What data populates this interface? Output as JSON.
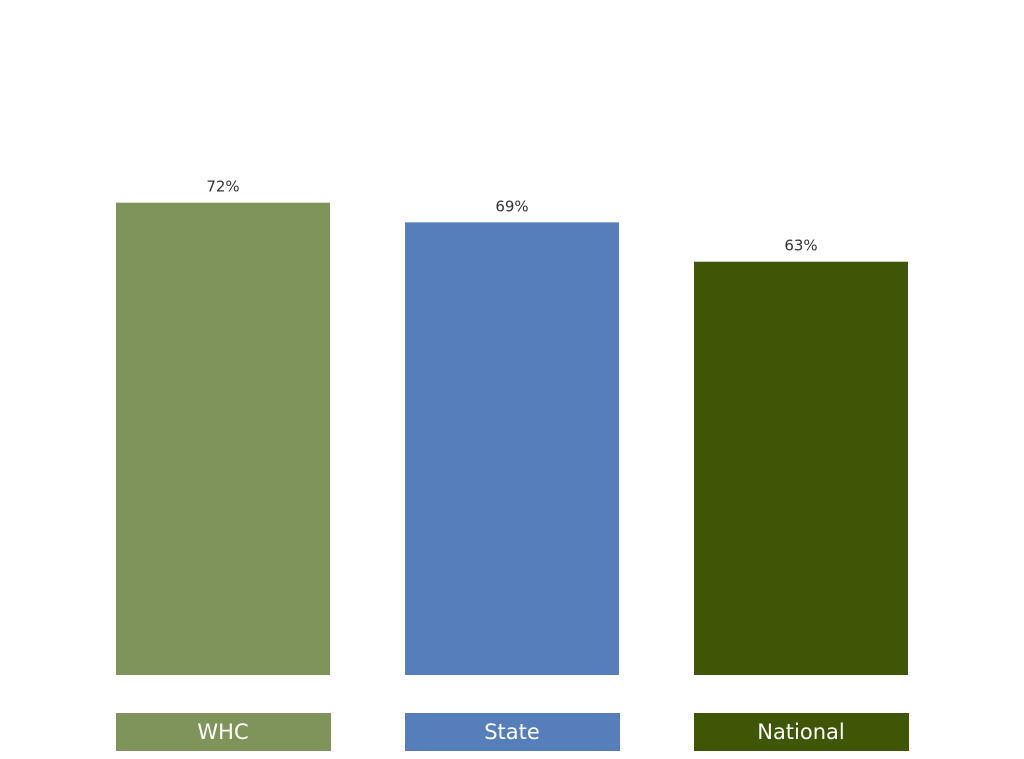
{
  "chart_data": {
    "type": "bar",
    "categories": [
      "WHC",
      "State",
      "National"
    ],
    "values": [
      72,
      69,
      63
    ],
    "value_labels": [
      "72%",
      "69%",
      "63%"
    ],
    "unit": "%",
    "colors": [
      "#7F945A",
      "#557EBB",
      "#3F5607"
    ],
    "label_text_color": "#ffffff",
    "value_text_color": "#333333",
    "title": "",
    "xlabel": "",
    "ylabel": "",
    "ylim": [
      0,
      100
    ],
    "grid": false,
    "legend": "none"
  }
}
